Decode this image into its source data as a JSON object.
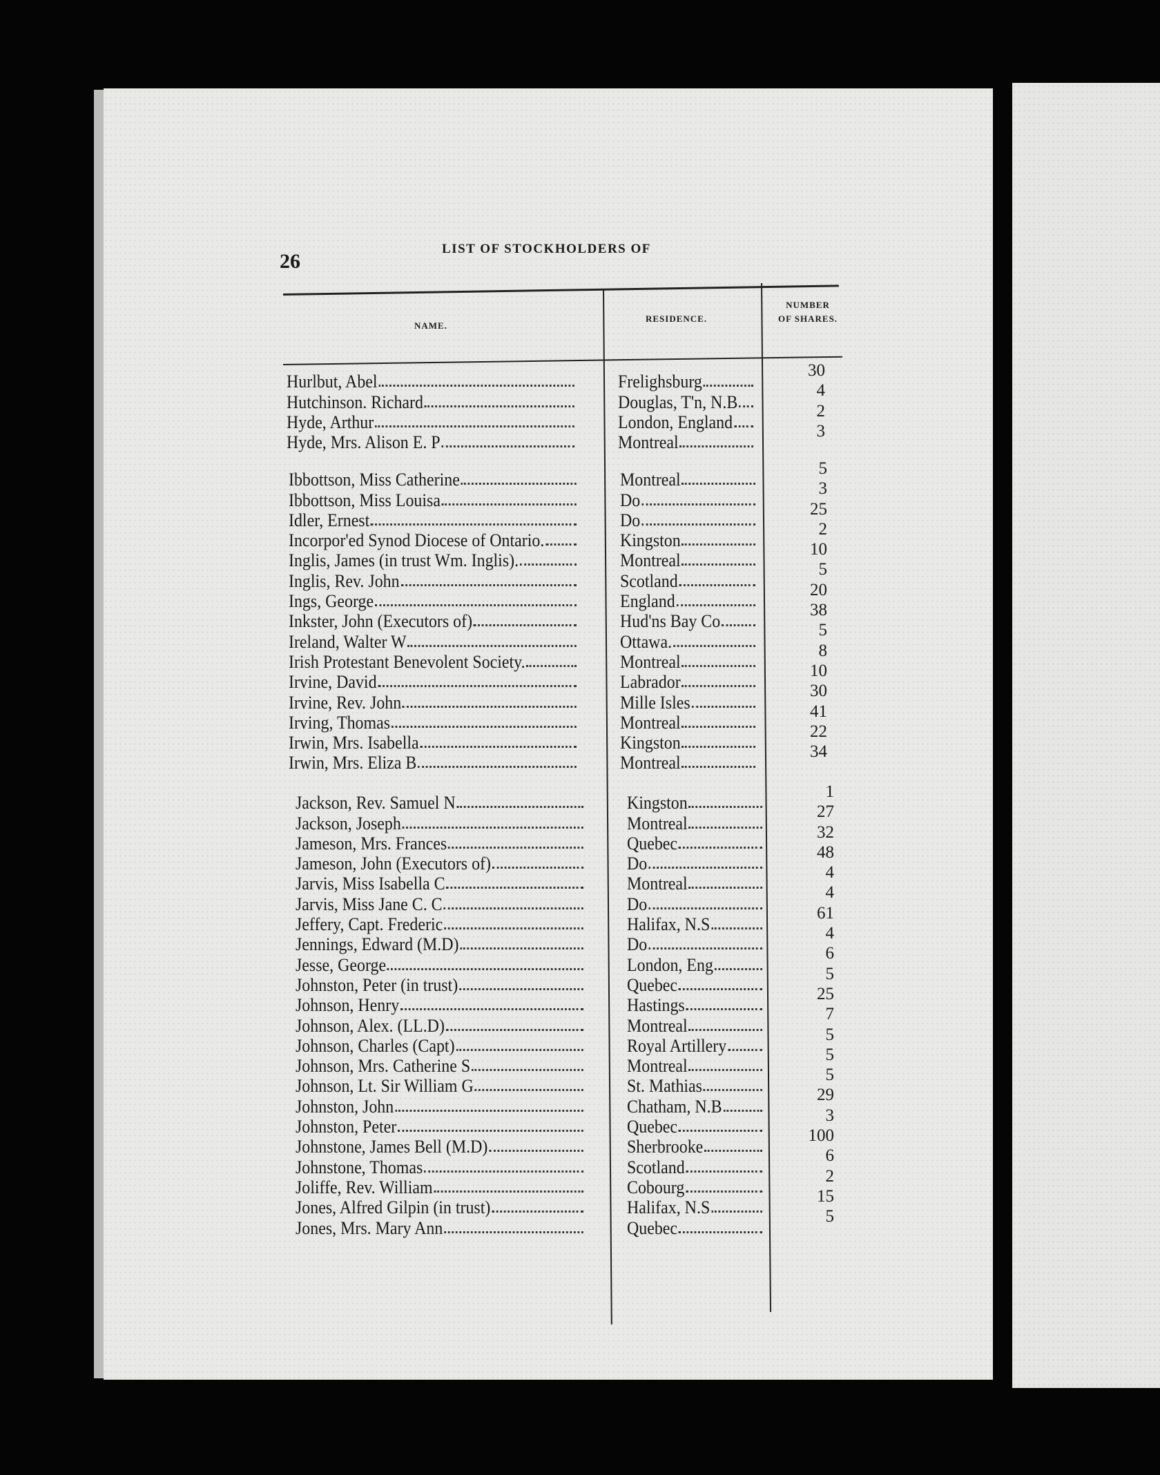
{
  "page_number": "26",
  "running_title": "LIST OF STOCKHOLDERS OF",
  "columns": {
    "name": "NAME.",
    "residence": "RESIDENCE.",
    "shares_line1": "NUMBER",
    "shares_line2": "OF SHARES."
  },
  "sections": [
    {
      "rows": [
        {
          "name": "Hurlbut, Abel",
          "residence": "Frelighsburg",
          "shares": "30"
        },
        {
          "name": "Hutchinson. Richard",
          "residence": "Douglas, T'n, N.B",
          "shares": "4"
        },
        {
          "name": "Hyde, Arthur",
          "residence": "London, England",
          "shares": "2"
        },
        {
          "name": "Hyde, Mrs. Alison E. P",
          "residence": "Montreal",
          "shares": "3"
        }
      ]
    },
    {
      "rows": [
        {
          "name": "Ibbottson, Miss Catherine",
          "residence": "Montreal",
          "shares": "5"
        },
        {
          "name": "Ibbottson, Miss Louisa",
          "residence": "Do",
          "shares": "3"
        },
        {
          "name": "Idler, Ernest",
          "residence": "Do",
          "shares": "25"
        },
        {
          "name": "Incorpor'ed Synod Diocese of Ontario.",
          "residence": "Kingston",
          "shares": "2"
        },
        {
          "name": "Inglis, James (in trust Wm. Inglis).",
          "residence": "Montreal",
          "shares": "10"
        },
        {
          "name": "Inglis, Rev. John",
          "residence": "Scotland",
          "shares": "5"
        },
        {
          "name": "Ings, George",
          "residence": "England",
          "shares": "20"
        },
        {
          "name": "Inkster, John (Executors of)",
          "residence": "Hud'ns Bay Co",
          "shares": "38"
        },
        {
          "name": "Ireland, Walter W",
          "residence": "Ottawa.",
          "shares": "5"
        },
        {
          "name": "Irish Protestant Benevolent Society.",
          "residence": "Montreal",
          "shares": "8"
        },
        {
          "name": "Irvine, David",
          "residence": "Labrador",
          "shares": "10"
        },
        {
          "name": "Irvine, Rev. John",
          "residence": "Mille Isles",
          "shares": "30"
        },
        {
          "name": "Irving, Thomas",
          "residence": "Montreal",
          "shares": "41"
        },
        {
          "name": "Irwin, Mrs. Isabella",
          "residence": "Kingston",
          "shares": "22"
        },
        {
          "name": "Irwin, Mrs. Eliza B",
          "residence": "Montreal",
          "shares": "34"
        }
      ]
    },
    {
      "rows": [
        {
          "name": "Jackson, Rev. Samuel N",
          "residence": "Kingston",
          "shares": "1"
        },
        {
          "name": "Jackson, Joseph",
          "residence": "Montreal",
          "shares": "27"
        },
        {
          "name": "Jameson, Mrs. Frances",
          "residence": "Quebec",
          "shares": "32"
        },
        {
          "name": "Jameson, John (Executors of)",
          "residence": "Do",
          "shares": "48"
        },
        {
          "name": "Jarvis, Miss Isabella C",
          "residence": "Montreal",
          "shares": "4"
        },
        {
          "name": "Jarvis, Miss Jane C. C",
          "residence": "Do",
          "shares": "4"
        },
        {
          "name": "Jeffery, Capt. Frederic",
          "residence": "Halifax, N.S",
          "shares": "61"
        },
        {
          "name": "Jennings, Edward (M.D)",
          "residence": "Do",
          "shares": "4"
        },
        {
          "name": "Jesse, George",
          "residence": "London, Eng",
          "shares": "6"
        },
        {
          "name": "Johnston, Peter (in trust)",
          "residence": "Quebec",
          "shares": "5"
        },
        {
          "name": "Johnson, Henry",
          "residence": "Hastings",
          "shares": "25"
        },
        {
          "name": "Johnson, Alex. (LL.D)",
          "residence": "Montreal",
          "shares": "7"
        },
        {
          "name": "Johnson, Charles (Capt)",
          "residence": "Royal Artillery",
          "shares": "5"
        },
        {
          "name": "Johnson, Mrs. Catherine S",
          "residence": "Montreal",
          "shares": "5"
        },
        {
          "name": "Johnson, Lt. Sir William G",
          "residence": "St. Mathias",
          "shares": "5"
        },
        {
          "name": "Johnston, John",
          "residence": "Chatham, N.B",
          "shares": "29"
        },
        {
          "name": "Johnston, Peter",
          "residence": "Quebec",
          "shares": "3"
        },
        {
          "name": "Johnstone, James Bell (M.D)",
          "residence": "Sherbrooke",
          "shares": "100"
        },
        {
          "name": "Johnstone, Thomas",
          "residence": "Scotland",
          "shares": "6"
        },
        {
          "name": "Joliffe, Rev. William",
          "residence": "Cobourg",
          "shares": "2"
        },
        {
          "name": "Jones, Alfred Gilpin (in trust)",
          "residence": "Halifax, N.S",
          "shares": "15"
        },
        {
          "name": "Jones, Mrs. Mary Ann",
          "residence": "Quebec",
          "shares": "5"
        }
      ]
    }
  ]
}
